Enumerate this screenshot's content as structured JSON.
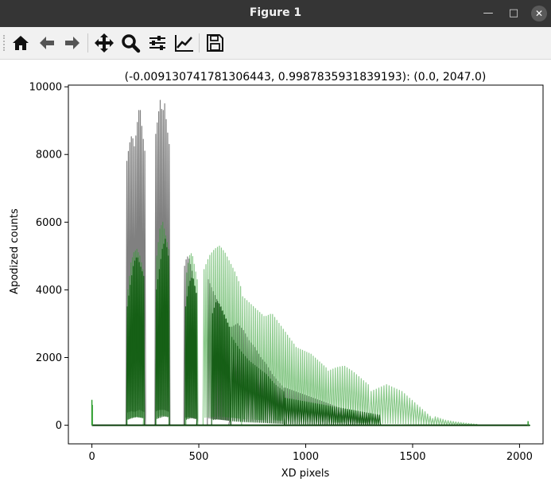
{
  "window": {
    "title": "Figure 1",
    "minimize_icon": "minimize-icon",
    "maximize_icon": "maximize-icon",
    "close_icon": "close-icon"
  },
  "toolbar": {
    "buttons": [
      {
        "name": "home-button",
        "icon": "home-icon"
      },
      {
        "name": "back-button",
        "icon": "arrow-left-icon"
      },
      {
        "name": "forward-button",
        "icon": "arrow-right-icon"
      },
      {
        "name": "pan-button",
        "icon": "move-icon"
      },
      {
        "name": "zoom-button",
        "icon": "magnifier-icon"
      },
      {
        "name": "configure-subplots-button",
        "icon": "sliders-icon"
      },
      {
        "name": "edit-axis-button",
        "icon": "line-chart-icon"
      },
      {
        "name": "save-button",
        "icon": "floppy-disk-icon"
      }
    ]
  },
  "chart_data": {
    "type": "line",
    "title": "(-0.009130741781306443, 0.9987835931839193):  (0.0, 2047.0)",
    "xlabel": "XD pixels",
    "ylabel": "Apodized counts",
    "xlim": [
      -110,
      2110
    ],
    "ylim": [
      -550,
      10050
    ],
    "xticks": [
      0,
      500,
      1000,
      1500,
      2000
    ],
    "yticks": [
      0,
      2000,
      4000,
      6000,
      8000,
      10000
    ],
    "grid": false,
    "series": [
      {
        "color": "#555555",
        "opacity": 0.75,
        "fringes": [
          {
            "x": [
              160,
              250
            ],
            "period": 7,
            "peaks": [
              7800,
              8300,
              8600,
              8200,
              8900,
              9500,
              8700,
              8100
            ]
          },
          {
            "x": [
              295,
              365
            ],
            "period": 7,
            "peaks": [
              8600,
              9100,
              9600,
              9200,
              9500,
              8800,
              8300
            ]
          },
          {
            "x": [
              430,
              490
            ],
            "period": 7,
            "peaks": [
              4700,
              5000,
              4900,
              4600,
              4200,
              3900
            ]
          },
          {
            "x": [
              540,
              640
            ],
            "period": 8,
            "peaks": [
              4300,
              4100,
              3900,
              3700,
              3500,
              3300,
              3100,
              2900
            ]
          },
          {
            "x": [
              650,
              900
            ],
            "period": 9,
            "peaks": [
              2900,
              3000,
              2800,
              2500,
              2300,
              2000,
              1800,
              1500,
              1300,
              1100
            ]
          },
          {
            "x": [
              900,
              1300
            ],
            "period": 10,
            "peaks": [
              1100,
              1000,
              900,
              800,
              700,
              600,
              500,
              400,
              300,
              200
            ]
          }
        ]
      },
      {
        "color": "#2e9e2e",
        "opacity": 0.55,
        "fringes": [
          {
            "x": [
              165,
              240
            ],
            "period": 7,
            "peaks": [
              4000,
              4800,
              5100,
              5200,
              5000,
              4600
            ]
          },
          {
            "x": [
              300,
              360
            ],
            "period": 7,
            "peaks": [
              5000,
              5800,
              6000,
              5600,
              5200
            ]
          },
          {
            "x": [
              440,
              495
            ],
            "period": 7,
            "peaks": [
              4500,
              5000,
              5100,
              4700,
              4300
            ]
          },
          {
            "x": [
              520,
              700
            ],
            "period": 9,
            "peaks": [
              4600,
              5000,
              5200,
              5300,
              5100,
              4800,
              4500,
              4100
            ]
          },
          {
            "x": [
              700,
              950
            ],
            "period": 10,
            "peaks": [
              3800,
              3600,
              3400,
              3200,
              3300,
              3000,
              2700,
              2400
            ]
          },
          {
            "x": [
              950,
              1100
            ],
            "period": 10,
            "peaks": [
              2300,
              2200,
              2100,
              1900,
              1700
            ]
          },
          {
            "x": [
              1100,
              1300
            ],
            "period": 11,
            "peaks": [
              1600,
              1700,
              1750,
              1600,
              1400,
              1200
            ]
          },
          {
            "x": [
              1300,
              1600
            ],
            "period": 12,
            "peaks": [
              1000,
              1100,
              1200,
              1100,
              1000,
              800,
              600,
              400,
              200
            ]
          },
          {
            "x": [
              1600,
              1800
            ],
            "period": 12,
            "peaks": [
              250,
              150,
              100,
              60,
              30
            ]
          }
        ]
      },
      {
        "color": "#0e5a0e",
        "opacity": 0.9,
        "fringes": [
          {
            "x": [
              162,
              245
            ],
            "period": 7,
            "peaks": [
              3500,
              4200,
              4800,
              5000,
              4700,
              4400
            ]
          },
          {
            "x": [
              298,
              362
            ],
            "period": 7,
            "peaks": [
              4000,
              4600,
              5200,
              5500,
              5000
            ]
          },
          {
            "x": [
              435,
              490
            ],
            "period": 7,
            "peaks": [
              3500,
              4200,
              4400,
              3900
            ]
          },
          {
            "x": [
              560,
              650
            ],
            "period": 8,
            "peaks": [
              3300,
              3700,
              3500,
              3200,
              2900
            ]
          },
          {
            "x": [
              650,
              900
            ],
            "period": 9,
            "peaks": [
              2600,
              2200,
              1900,
              1700,
              1500,
              1200,
              1000
            ]
          },
          {
            "x": [
              900,
              1350
            ],
            "period": 10,
            "peaks": [
              800,
              700,
              600,
              500,
              400,
              300
            ]
          }
        ]
      }
    ],
    "baseline_points": [
      {
        "x": 0,
        "y": 750
      },
      {
        "x": 2,
        "y": 600
      },
      {
        "x": 2040,
        "y": 120
      }
    ]
  }
}
